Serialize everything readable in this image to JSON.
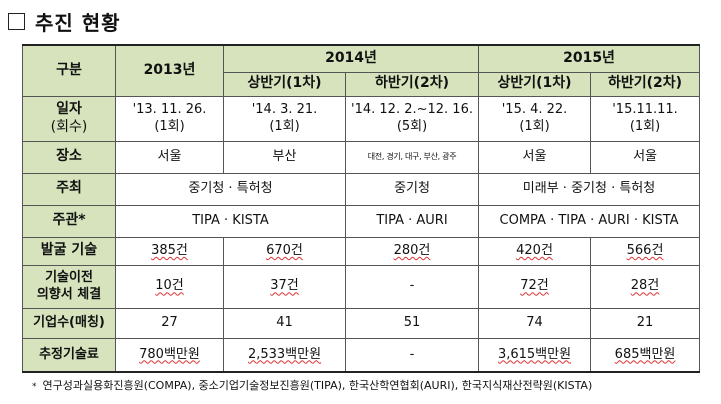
{
  "title": "추진 현황",
  "header": {
    "col_label": "구분",
    "year_2013": "2013년",
    "year_2014": "2014년",
    "year_2015": "2015년",
    "h1_2014": "상반기(1차)",
    "h2_2014": "하반기(2차)",
    "h1_2015": "상반기(1차)",
    "h2_2015": "하반기(2차)"
  },
  "rows": {
    "date": {
      "label_line1": "일자",
      "label_line2": "(회수)",
      "c2013_l1": "'13. 11. 26.",
      "c2013_l2": "(1회)",
      "c2014h1_l1": "'14. 3. 21.",
      "c2014h1_l2": "(1회)",
      "c2014h2_l1": "'14. 12. 2.~12. 16.",
      "c2014h2_l2": "(5회)",
      "c2015h1_l1": "'15. 4. 22.",
      "c2015h1_l2": "(1회)",
      "c2015h2_l1": "'15.11.11.",
      "c2015h2_l2": "(1회)"
    },
    "place": {
      "label": "장소",
      "c2013": "서울",
      "c2014h1": "부산",
      "c2014h2": "대전, 경기, 대구, 부산, 광주",
      "c2015h1": "서울",
      "c2015h2": "서울"
    },
    "host": {
      "label": "주최",
      "c2013_2014h1": "중기청 · 특허청",
      "c2014h2": "중기청",
      "c2015": "미래부 · 중기청 · 특허청"
    },
    "organizer": {
      "label": "주관*",
      "c2013_2014h1": "TIPA · KISTA",
      "c2014h2": "TIPA · AURI",
      "c2015": "COMPA · TIPA · AURI · KISTA"
    },
    "discovered": {
      "label": "발굴 기술",
      "c2013": "385건",
      "c2014h1": "670건",
      "c2014h2": "280건",
      "c2015h1": "420건",
      "c2015h2": "566건"
    },
    "loi": {
      "label_line1": "기술이전",
      "label_line2": "의향서 체결",
      "c2013": "10건",
      "c2014h1": "37건",
      "c2014h2": "-",
      "c2015h1": "72건",
      "c2015h2": "28건"
    },
    "companies": {
      "label": "기업수(매칭)",
      "c2013": "27",
      "c2014h1": "41",
      "c2014h2": "51",
      "c2015h1": "74",
      "c2015h2": "21"
    },
    "fee": {
      "label": "추정기술료",
      "c2013": "780백만원",
      "c2014h1": "2,533백만원",
      "c2014h2": "-",
      "c2015h1": "3,615백만원",
      "c2015h2": "685백만원"
    }
  },
  "footnote": {
    "mark": "*",
    "text": "연구성과실용화진흥원(COMPA), 중소기업기술정보진흥원(TIPA), 한국산학연협회(AURI), 한국지식재산전략원(KISTA)"
  }
}
